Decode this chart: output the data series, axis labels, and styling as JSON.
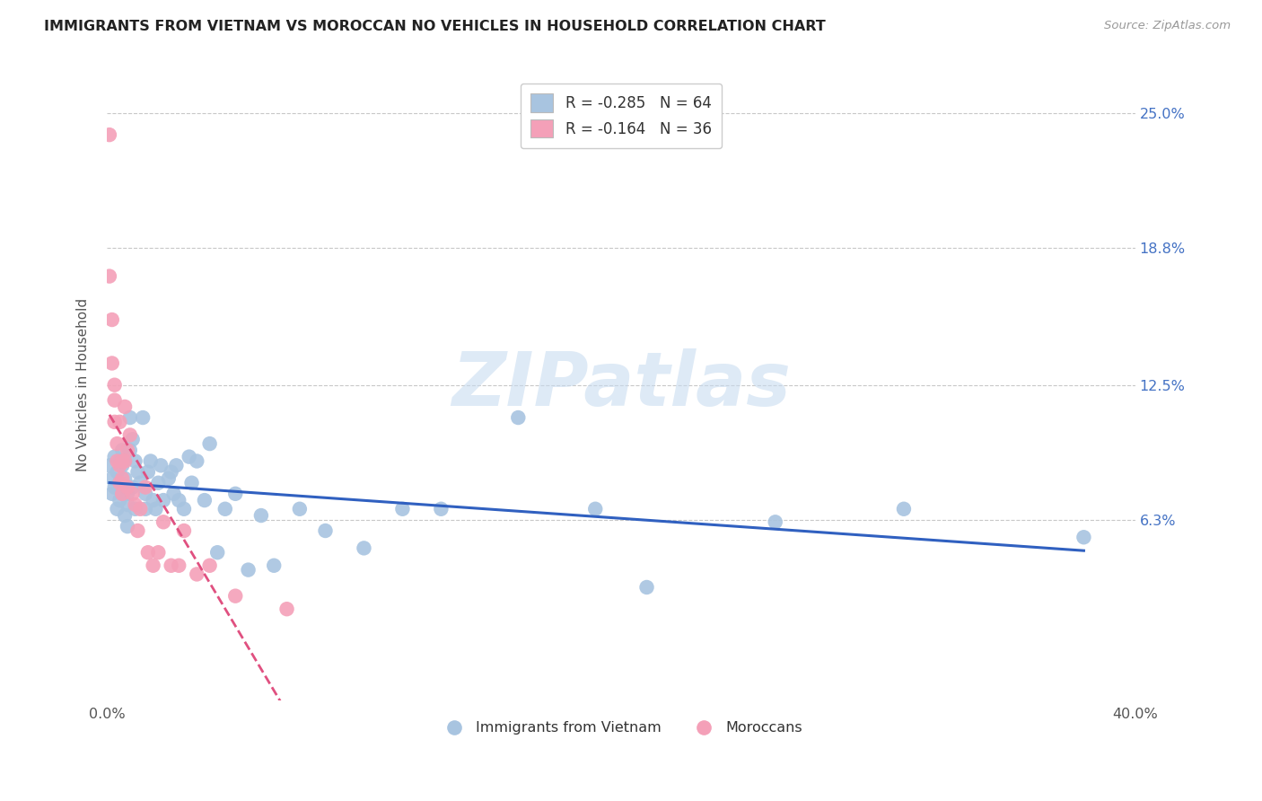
{
  "title": "IMMIGRANTS FROM VIETNAM VS MOROCCAN NO VEHICLES IN HOUSEHOLD CORRELATION CHART",
  "source": "Source: ZipAtlas.com",
  "ylabel": "No Vehicles in Household",
  "ytick_vals": [
    0.063,
    0.125,
    0.188,
    0.25
  ],
  "ytick_labels": [
    "6.3%",
    "12.5%",
    "18.8%",
    "25.0%"
  ],
  "xlim": [
    0.0,
    0.4
  ],
  "ylim": [
    -0.02,
    0.27
  ],
  "legend_blue_label": "R = -0.285   N = 64",
  "legend_pink_label": "R = -0.164   N = 36",
  "legend_bottom_blue": "Immigrants from Vietnam",
  "legend_bottom_pink": "Moroccans",
  "blue_scatter_color": "#a8c4e0",
  "pink_scatter_color": "#f4a0b8",
  "trendline_blue_color": "#3060c0",
  "trendline_pink_color": "#e05080",
  "watermark_text": "ZIPatlas",
  "vietnam_x": [
    0.001,
    0.002,
    0.002,
    0.003,
    0.003,
    0.004,
    0.004,
    0.005,
    0.005,
    0.005,
    0.006,
    0.006,
    0.006,
    0.007,
    0.007,
    0.008,
    0.008,
    0.008,
    0.009,
    0.009,
    0.01,
    0.01,
    0.011,
    0.011,
    0.012,
    0.013,
    0.014,
    0.015,
    0.015,
    0.016,
    0.017,
    0.018,
    0.019,
    0.02,
    0.021,
    0.022,
    0.024,
    0.025,
    0.026,
    0.027,
    0.028,
    0.03,
    0.032,
    0.033,
    0.035,
    0.038,
    0.04,
    0.043,
    0.046,
    0.05,
    0.055,
    0.06,
    0.065,
    0.075,
    0.085,
    0.1,
    0.115,
    0.13,
    0.16,
    0.19,
    0.21,
    0.26,
    0.31,
    0.38
  ],
  "vietnam_y": [
    0.088,
    0.082,
    0.075,
    0.092,
    0.078,
    0.085,
    0.068,
    0.08,
    0.072,
    0.09,
    0.095,
    0.088,
    0.075,
    0.082,
    0.065,
    0.075,
    0.07,
    0.06,
    0.11,
    0.095,
    0.1,
    0.078,
    0.09,
    0.068,
    0.085,
    0.08,
    0.11,
    0.068,
    0.075,
    0.085,
    0.09,
    0.072,
    0.068,
    0.08,
    0.088,
    0.072,
    0.082,
    0.085,
    0.075,
    0.088,
    0.072,
    0.068,
    0.092,
    0.08,
    0.09,
    0.072,
    0.098,
    0.048,
    0.068,
    0.075,
    0.04,
    0.065,
    0.042,
    0.068,
    0.058,
    0.05,
    0.068,
    0.068,
    0.11,
    0.068,
    0.032,
    0.062,
    0.068,
    0.055
  ],
  "morocco_x": [
    0.001,
    0.001,
    0.002,
    0.002,
    0.003,
    0.003,
    0.003,
    0.004,
    0.004,
    0.005,
    0.005,
    0.005,
    0.006,
    0.006,
    0.006,
    0.007,
    0.007,
    0.008,
    0.008,
    0.009,
    0.01,
    0.011,
    0.012,
    0.013,
    0.015,
    0.016,
    0.018,
    0.02,
    0.022,
    0.025,
    0.028,
    0.03,
    0.035,
    0.04,
    0.05,
    0.07
  ],
  "morocco_y": [
    0.24,
    0.175,
    0.155,
    0.135,
    0.125,
    0.118,
    0.108,
    0.098,
    0.09,
    0.088,
    0.08,
    0.108,
    0.09,
    0.082,
    0.075,
    0.09,
    0.115,
    0.095,
    0.078,
    0.102,
    0.075,
    0.07,
    0.058,
    0.068,
    0.078,
    0.048,
    0.042,
    0.048,
    0.062,
    0.042,
    0.042,
    0.058,
    0.038,
    0.042,
    0.028,
    0.022
  ]
}
